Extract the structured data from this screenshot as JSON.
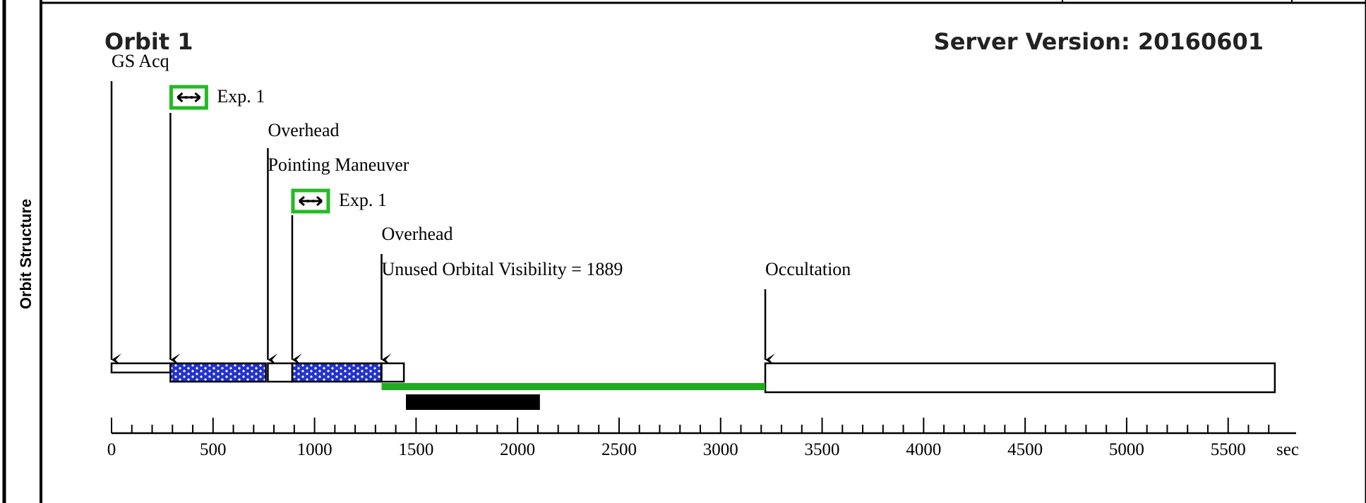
{
  "panel": {
    "side_label": "Orbit Structure"
  },
  "header": {
    "orbit_title": "Orbit 1",
    "server_version": "Server Version: 20160601"
  },
  "annotations": [
    {
      "id": "gs-acq",
      "text": "GS Acq",
      "t": 0
    },
    {
      "id": "exp-1a",
      "text": "Exp. 1",
      "t": 290,
      "icon": "exposure-arrow-icon"
    },
    {
      "id": "overhead-a",
      "text": "Overhead",
      "t": 770
    },
    {
      "id": "pointing",
      "text": "Pointing Maneuver",
      "t": 770
    },
    {
      "id": "exp-1b",
      "text": "Exp. 1",
      "t": 890,
      "icon": "exposure-arrow-icon"
    },
    {
      "id": "overhead-b",
      "text": "Overhead",
      "t": 1330
    },
    {
      "id": "unused",
      "text": "Unused Orbital Visibility = 1889",
      "t": 1330
    },
    {
      "id": "occultation",
      "text": "Occultation",
      "t": 3220
    }
  ],
  "chart_data": {
    "type": "timeline",
    "x_unit": "sec",
    "xlim": [
      0,
      5800
    ],
    "ticks": [
      0,
      500,
      1000,
      1500,
      2000,
      2500,
      3000,
      3500,
      4000,
      4500,
      5000,
      5500
    ],
    "arrows_at": [
      0,
      290,
      770,
      890,
      1330,
      3220
    ],
    "segments": [
      {
        "name": "GS Acq",
        "start": 0,
        "end": 290,
        "style": "hollow"
      },
      {
        "name": "Exp. 1",
        "start": 290,
        "end": 760,
        "style": "dotted-blue"
      },
      {
        "name": "Overhead / Pointing Maneuver",
        "start": 770,
        "end": 890,
        "style": "hollow"
      },
      {
        "name": "Exp. 1",
        "start": 890,
        "end": 1330,
        "style": "dotted-blue"
      },
      {
        "name": "Overhead",
        "start": 1330,
        "end": 1440,
        "style": "hollow"
      },
      {
        "name": "Occultation",
        "start": 3220,
        "end": 5730,
        "style": "hollow"
      }
    ],
    "visibility_bar": {
      "start": 1330,
      "end": 3220,
      "color": "#22aa22"
    },
    "black_bar": {
      "start": 1450,
      "end": 2110,
      "color": "#000000"
    },
    "colors": {
      "exposure_box": "#22bb22",
      "dots_fill": "#2233cc"
    }
  }
}
